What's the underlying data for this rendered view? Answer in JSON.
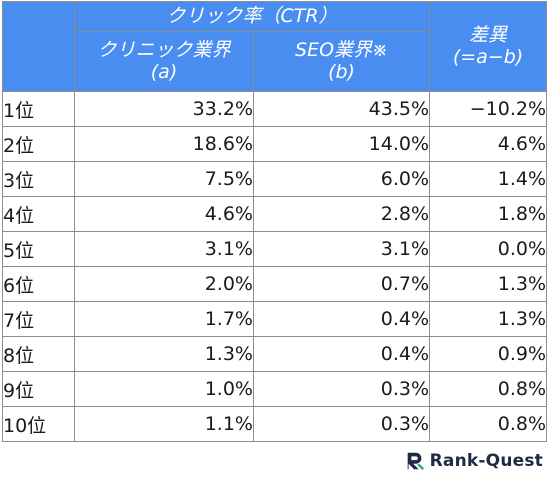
{
  "table": {
    "header_group": "クリック率（CTR）",
    "col_a_line1": "クリニック業界",
    "col_a_line2": "(a)",
    "col_b_line1": "SEO業界※",
    "col_b_line2": "(b)",
    "col_diff_line1": "差異",
    "col_diff_line2": "(=a−b)",
    "rows": [
      {
        "rank": "1位",
        "a": "33.2%",
        "b": "43.5%",
        "diff": "−10.2%"
      },
      {
        "rank": "2位",
        "a": "18.6%",
        "b": "14.0%",
        "diff": "4.6%"
      },
      {
        "rank": "3位",
        "a": "7.5%",
        "b": "6.0%",
        "diff": "1.4%"
      },
      {
        "rank": "4位",
        "a": "4.6%",
        "b": "2.8%",
        "diff": "1.8%"
      },
      {
        "rank": "5位",
        "a": "3.1%",
        "b": "3.1%",
        "diff": "0.0%"
      },
      {
        "rank": "6位",
        "a": "2.0%",
        "b": "0.7%",
        "diff": "1.3%"
      },
      {
        "rank": "7位",
        "a": "1.7%",
        "b": "0.4%",
        "diff": "1.3%"
      },
      {
        "rank": "8位",
        "a": "1.3%",
        "b": "0.4%",
        "diff": "0.9%"
      },
      {
        "rank": "9位",
        "a": "1.0%",
        "b": "0.3%",
        "diff": "0.8%"
      },
      {
        "rank": "10位",
        "a": "1.1%",
        "b": "0.3%",
        "diff": "0.8%"
      }
    ]
  },
  "logo": {
    "text": "Rank-Quest",
    "icon": "rank-quest-logo-icon"
  },
  "colors": {
    "header_bg": "#4a8df0",
    "header_text": "#ffffff",
    "border": "#8c8c8c",
    "logo_text": "#1f2a44"
  }
}
